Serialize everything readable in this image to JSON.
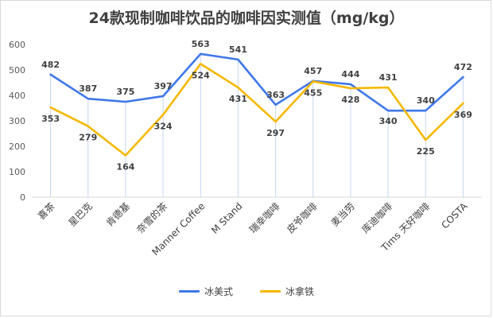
{
  "chart_data": {
    "type": "line",
    "title": "24款现制咖啡饮品的咖啡因实测值（mg/kg）",
    "categories": [
      "喜茶",
      "星巴克",
      "肯德基",
      "奈雪的茶",
      "Manner Coffee",
      "M Stand",
      "瑞幸咖啡",
      "皮爷咖啡",
      "麦当劳",
      "库迪咖啡",
      "Tims 天好咖啡",
      "COSTA"
    ],
    "series": [
      {
        "name": "冰美式",
        "color": "#3F78E8",
        "values": [
          482,
          387,
          375,
          397,
          563,
          541,
          363,
          457,
          444,
          340,
          340,
          472
        ]
      },
      {
        "name": "冰拿铁",
        "color": "#F5B800",
        "values": [
          353,
          279,
          164,
          324,
          524,
          431,
          297,
          455,
          428,
          431,
          225,
          369
        ]
      }
    ],
    "ylim": [
      0,
      600
    ],
    "yticks": [
      0,
      100,
      200,
      300,
      400,
      500,
      600
    ],
    "xlabel": "",
    "ylabel": "",
    "grid": false,
    "legend": "bottom"
  }
}
